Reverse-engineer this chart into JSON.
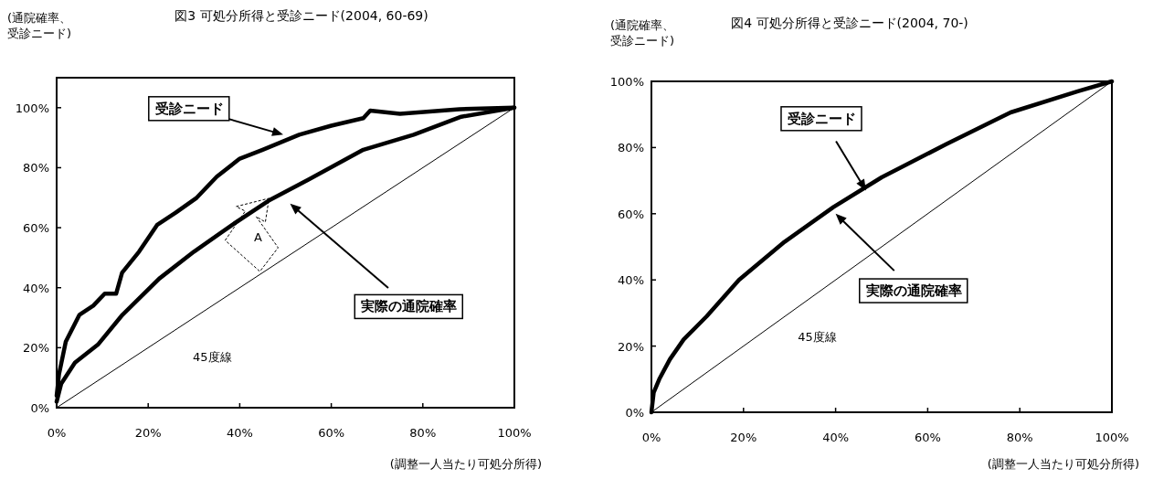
{
  "chart_data": [
    {
      "type": "line",
      "title": "図3 可処分所得と受診ニード(2004, 60-69)",
      "ylabel": "(通院確率、受診ニード)",
      "xlabel": "(調整一人当たり可処分所得)",
      "series": [
        {
          "color": "#000000",
          "x": [
            0,
            0.5,
            2,
            5,
            8,
            10.5,
            13,
            14.3,
            18,
            22,
            26,
            30.6,
            35,
            40,
            45,
            53,
            60,
            67,
            68.5,
            75,
            88,
            100
          ],
          "values": [
            4,
            11,
            22,
            31,
            34,
            38,
            38,
            45,
            52,
            61,
            65,
            70,
            77,
            83,
            86,
            91,
            94,
            96.5,
            99,
            98,
            99.5,
            100
          ]
        },
        {
          "color": "#000000",
          "x": [
            0,
            1,
            4,
            9,
            14.4,
            22.4,
            30,
            38.4,
            46.3,
            55,
            67,
            78,
            88.4,
            100
          ],
          "values": [
            2,
            8,
            15,
            21,
            31,
            43,
            52,
            61,
            69,
            76,
            86,
            91,
            97,
            100
          ]
        },
        {
          "color": "#000000",
          "x": [
            0,
            100
          ],
          "values": [
            0,
            100
          ]
        }
      ],
      "annotations": [
        "受診ニード",
        "実際の通院確率",
        "45度線",
        "A"
      ],
      "xlim": [
        0,
        100
      ],
      "ylim": [
        0,
        110
      ],
      "xticks": [
        {
          "value": 0,
          "label": "0%"
        },
        {
          "value": 20,
          "label": "20%"
        },
        {
          "value": 40,
          "label": "40%"
        },
        {
          "value": 60,
          "label": "60%"
        },
        {
          "value": 80,
          "label": "80%"
        },
        {
          "value": 100,
          "label": "100%"
        }
      ],
      "yticks": [
        {
          "value": 0,
          "label": "0%"
        },
        {
          "value": 20,
          "label": "20%"
        },
        {
          "value": 40,
          "label": "40%"
        },
        {
          "value": 60,
          "label": "60%"
        },
        {
          "value": 80,
          "label": "80%"
        },
        {
          "value": 100,
          "label": "100%"
        }
      ],
      "grid": false
    },
    {
      "type": "line",
      "title": "図4 可処分所得と受診ニード(2004, 70-)",
      "ylabel": "(通院確率、受診ニード)",
      "xlabel": "(調整一人当たり可処分所得)",
      "series": [
        {
          "color": "#000000",
          "x": [
            0,
            0.5,
            1.7,
            4,
            7,
            12,
            19,
            28.9,
            39.5,
            50,
            64,
            78,
            92.6,
            100
          ],
          "values": [
            0,
            6,
            10,
            16,
            22,
            29,
            40,
            51.5,
            62,
            71,
            81,
            90.6,
            97,
            100
          ]
        },
        {
          "color": "#000000",
          "x": [
            0,
            100
          ],
          "values": [
            0,
            100
          ]
        }
      ],
      "annotations": [
        "受診ニード",
        "実際の通院確率",
        "45度線"
      ],
      "xlim": [
        0,
        100
      ],
      "ylim": [
        0,
        100
      ],
      "xticks": [
        {
          "value": 0,
          "label": "0%"
        },
        {
          "value": 20,
          "label": "20%"
        },
        {
          "value": 40,
          "label": "40%"
        },
        {
          "value": 60,
          "label": "60%"
        },
        {
          "value": 80,
          "label": "80%"
        },
        {
          "value": 100,
          "label": "100%"
        }
      ],
      "yticks": [
        {
          "value": 0,
          "label": "0%"
        },
        {
          "value": 20,
          "label": "20%"
        },
        {
          "value": 40,
          "label": "40%"
        },
        {
          "value": 60,
          "label": "60%"
        },
        {
          "value": 80,
          "label": "80%"
        },
        {
          "value": 100,
          "label": "100%"
        }
      ],
      "grid": false
    }
  ]
}
